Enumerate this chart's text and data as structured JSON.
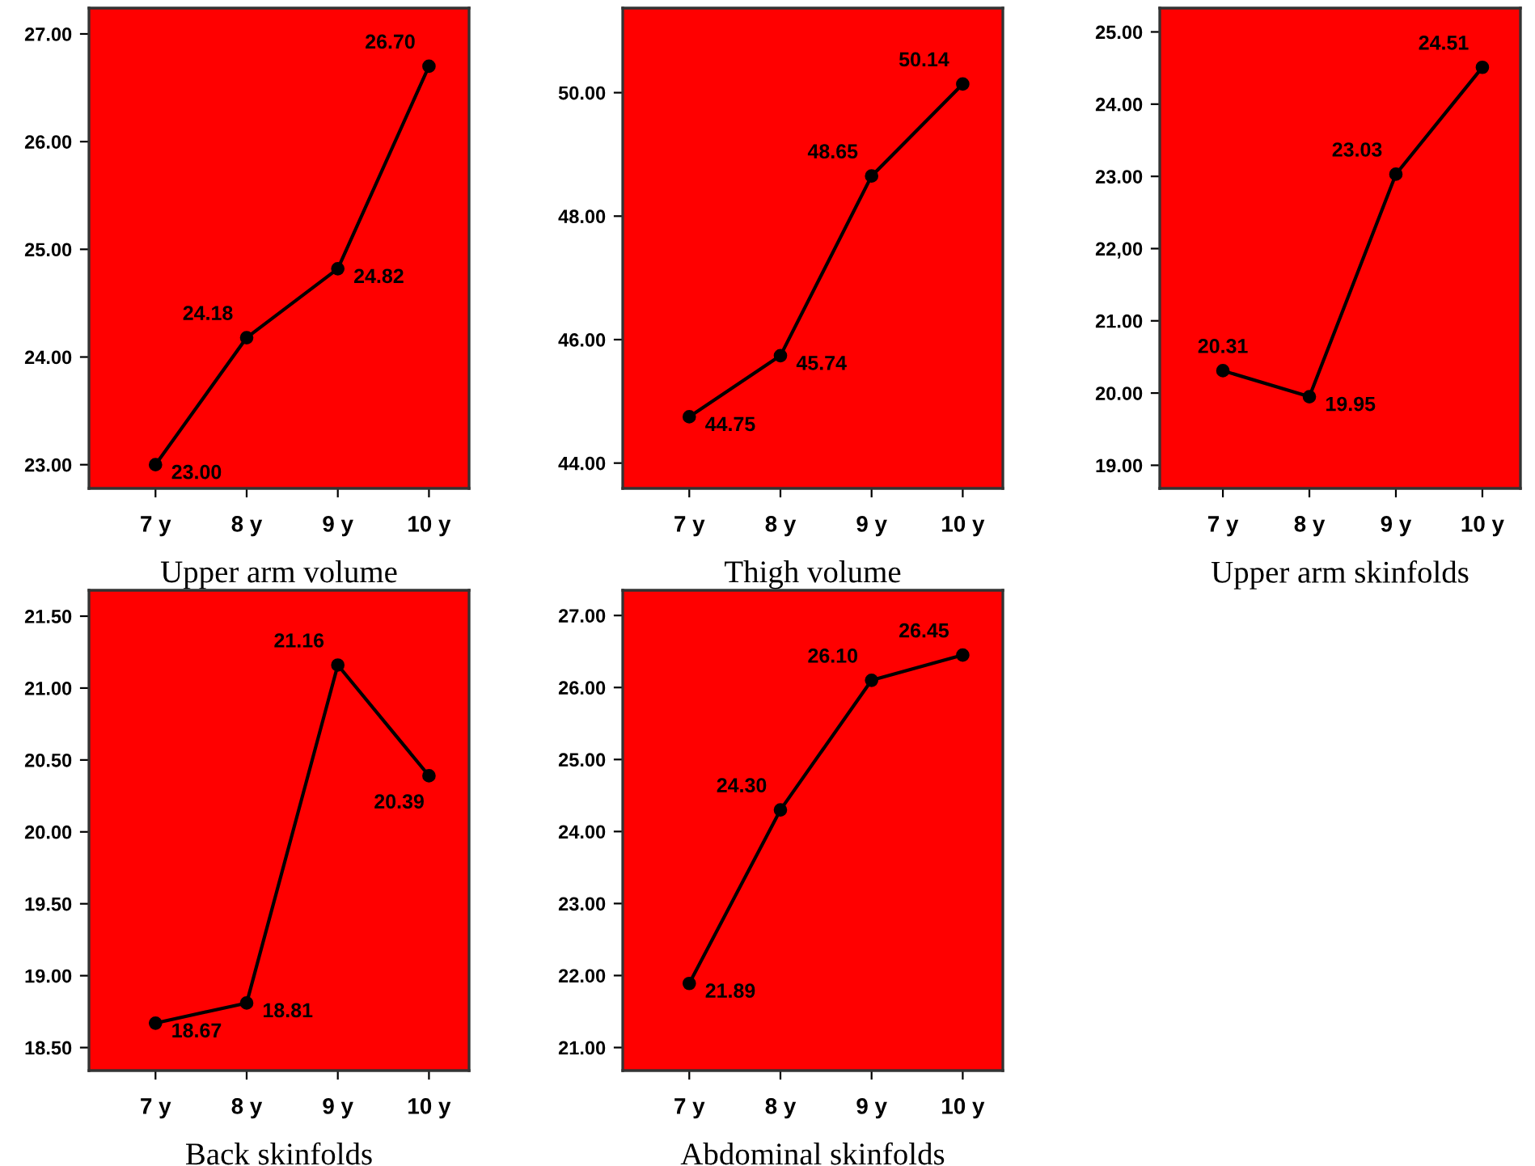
{
  "chart_data": [
    {
      "type": "line",
      "title": "Upper arm volume",
      "categories": [
        "7 y",
        "8 y",
        "9 y",
        "10 y"
      ],
      "series": [
        {
          "color": "#000000",
          "values": [
            23.0,
            24.18,
            24.82,
            26.7
          ],
          "value_labels": [
            "23.00",
            "24.18",
            "24.82",
            "26.70"
          ]
        }
      ],
      "ylim": [
        22.78,
        27.24
      ],
      "yticks": [
        {
          "value": 23,
          "label": "23.00"
        },
        {
          "value": 24,
          "label": "24.00"
        },
        {
          "value": 25,
          "label": "25.00"
        },
        {
          "value": 26,
          "label": "26.00"
        },
        {
          "value": 27,
          "label": "27.00"
        }
      ],
      "marker": "circle"
    },
    {
      "type": "line",
      "title": "Thigh volume",
      "categories": [
        "7 y",
        "8 y",
        "9 y",
        "10 y"
      ],
      "series": [
        {
          "color": "#000000",
          "values": [
            44.75,
            45.74,
            48.65,
            50.14
          ],
          "value_labels": [
            "44.75",
            "45.74",
            "48.65",
            "50.14"
          ]
        }
      ],
      "ylim": [
        43.59,
        51.37
      ],
      "yticks": [
        {
          "value": 44,
          "label": "44.00"
        },
        {
          "value": 46,
          "label": "46.00"
        },
        {
          "value": 48,
          "label": "48.00"
        },
        {
          "value": 50,
          "label": "50.00"
        }
      ],
      "marker": "circle"
    },
    {
      "type": "line",
      "title": "Upper arm skinfolds",
      "categories": [
        "7 y",
        "8 y",
        "9 y",
        "10 y"
      ],
      "series": [
        {
          "color": "#000000",
          "values": [
            20.31,
            19.95,
            23.03,
            24.51
          ],
          "value_labels": [
            "20.31",
            "19.95",
            "23.03",
            "24.51"
          ]
        }
      ],
      "ylim": [
        18.68,
        25.33
      ],
      "yticks": [
        {
          "value": 19,
          "label": "19.00"
        },
        {
          "value": 20,
          "label": "20.00"
        },
        {
          "value": 21,
          "label": "21.00"
        },
        {
          "value": 22,
          "label": "22,00"
        },
        {
          "value": 23,
          "label": "23.00"
        },
        {
          "value": 24,
          "label": "24.00"
        },
        {
          "value": 25,
          "label": "25.00"
        }
      ],
      "marker": "circle"
    },
    {
      "type": "line",
      "title": "Back skinfolds",
      "categories": [
        "7 y",
        "8 y",
        "9 y",
        "10 y"
      ],
      "series": [
        {
          "color": "#000000",
          "values": [
            18.67,
            18.81,
            21.16,
            20.39
          ],
          "value_labels": [
            "18.67",
            "18.81",
            "21.16",
            "20.39"
          ]
        }
      ],
      "ylim": [
        18.34,
        21.68
      ],
      "yticks": [
        {
          "value": 18.5,
          "label": "18.50"
        },
        {
          "value": 19,
          "label": "19.00"
        },
        {
          "value": 19.5,
          "label": "19.50"
        },
        {
          "value": 20,
          "label": "20.00"
        },
        {
          "value": 20.5,
          "label": "20.50"
        },
        {
          "value": 21,
          "label": "21.00"
        },
        {
          "value": 21.5,
          "label": "21.50"
        }
      ],
      "marker": "circle"
    },
    {
      "type": "line",
      "title": "Abdominal skinfolds",
      "categories": [
        "7 y",
        "8 y",
        "9 y",
        "10 y"
      ],
      "series": [
        {
          "color": "#000000",
          "values": [
            21.89,
            24.3,
            26.1,
            26.45
          ],
          "value_labels": [
            "21.89",
            "24.30",
            "26.10",
            "26.45"
          ]
        }
      ],
      "ylim": [
        20.68,
        27.35
      ],
      "yticks": [
        {
          "value": 21,
          "label": "21.00"
        },
        {
          "value": 22,
          "label": "22.00"
        },
        {
          "value": 23,
          "label": "23.00"
        },
        {
          "value": 24,
          "label": "24.00"
        },
        {
          "value": 25,
          "label": "25.00"
        },
        {
          "value": 26,
          "label": "26.00"
        },
        {
          "value": 27,
          "label": "27.00"
        }
      ],
      "marker": "circle"
    }
  ]
}
